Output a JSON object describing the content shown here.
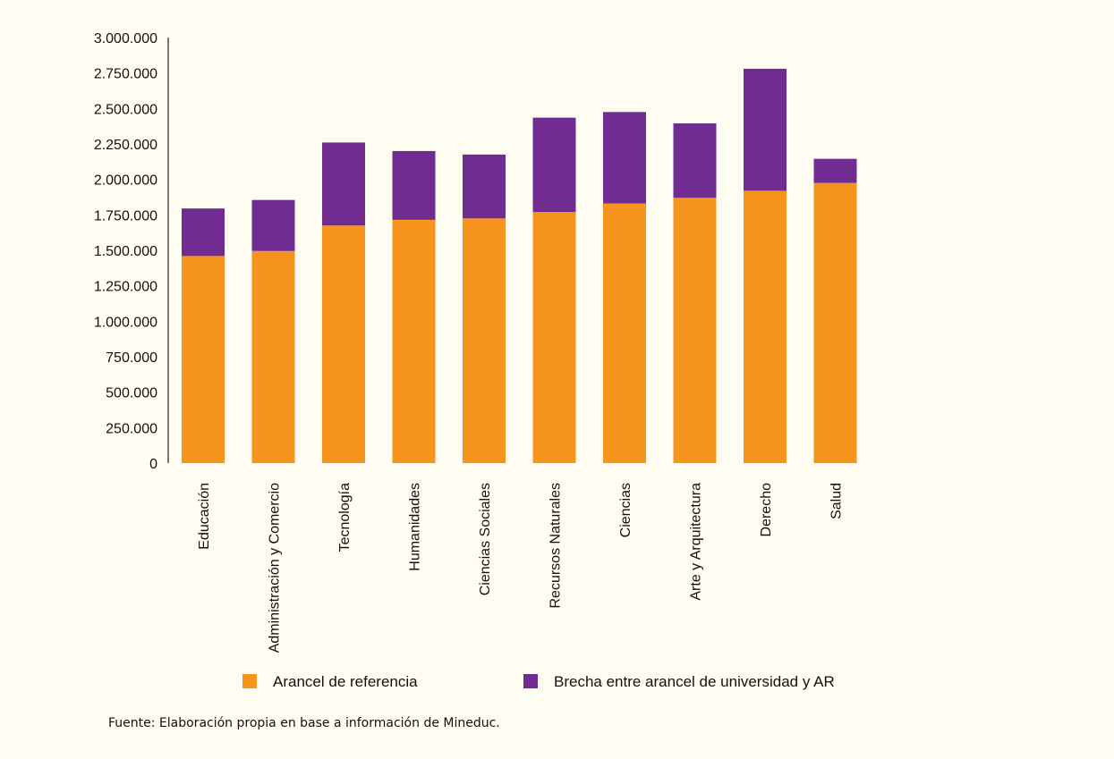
{
  "chart_data": {
    "type": "bar",
    "stacked": true,
    "categories": [
      "Educación",
      "Administración y Comercio",
      "Tecnología",
      "Humanidades",
      "Ciencias Sociales",
      "Recursos Naturales",
      "Ciencias",
      "Arte y Arquitectura",
      "Derecho",
      "Salud"
    ],
    "series": [
      {
        "name": "Arancel de referencia",
        "color": "#f7941d",
        "values": [
          1460000,
          1495000,
          1675000,
          1715000,
          1725000,
          1770000,
          1830000,
          1870000,
          1920000,
          1975000
        ]
      },
      {
        "name": "Brecha entre arancel de universidad y AR",
        "color": "#702c91",
        "values": [
          335000,
          360000,
          585000,
          485000,
          450000,
          665000,
          645000,
          525000,
          860000,
          170000
        ]
      }
    ],
    "y_ticks": [
      "0",
      "250.000",
      "500.000",
      "750.000",
      "1.000.000",
      "1.250.000",
      "1.500.000",
      "1.750.000",
      "2.000.000",
      "2.250.000",
      "2.500.000",
      "2.750.000",
      "3.000.000"
    ],
    "ylim": [
      0,
      3000000
    ],
    "legend_position": "bottom",
    "grid": false
  },
  "source_note": "Fuente: Elaboración propia en base a información de Mineduc."
}
